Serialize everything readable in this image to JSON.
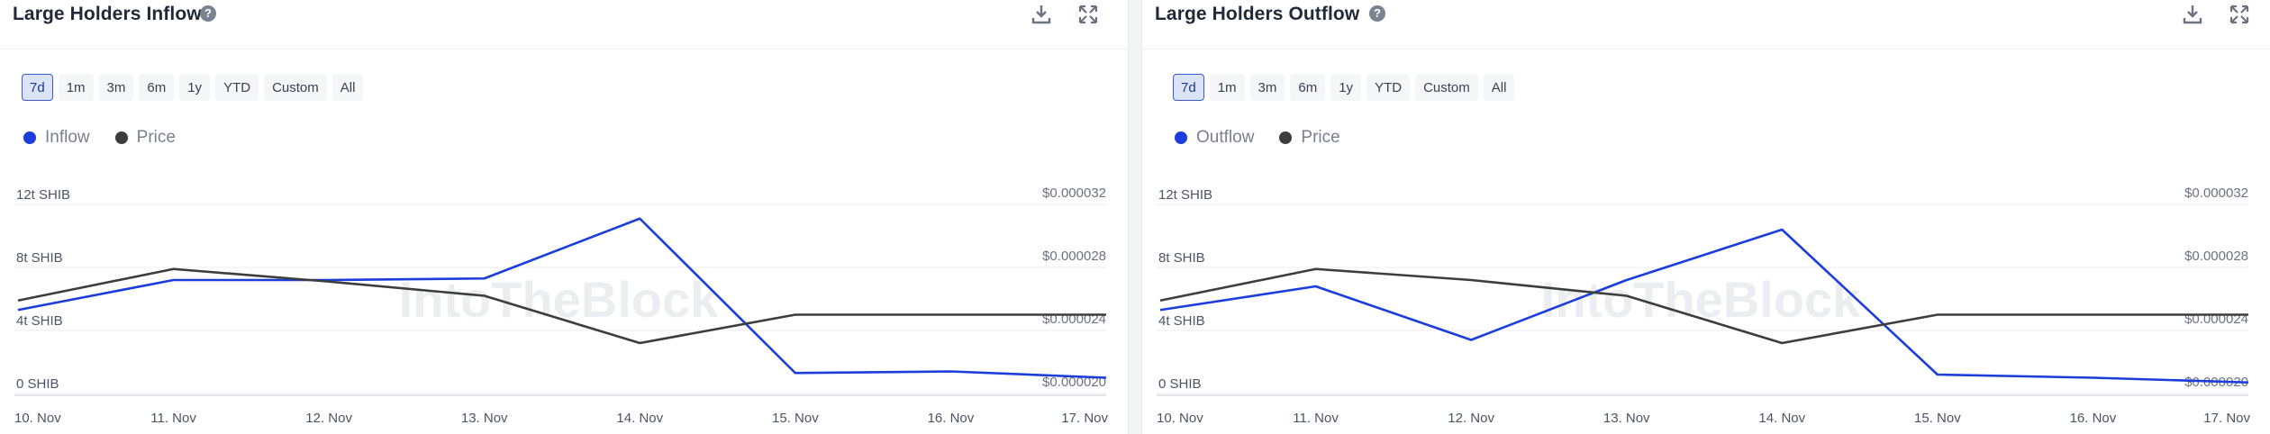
{
  "colors": {
    "primary": "#1a3ddb",
    "price": "#3d3d3d",
    "grid": "#eceef1"
  },
  "watermark": "IntoTheBlock",
  "panels": [
    {
      "title": "Large Holders Inflow",
      "help_icon": "?",
      "ranges": [
        "7d",
        "1m",
        "3m",
        "6m",
        "1y",
        "YTD",
        "Custom",
        "All"
      ],
      "active_range": "7d",
      "legend": [
        "Inflow",
        "Price"
      ],
      "chart_data": {
        "type": "line",
        "categories": [
          "10. Nov",
          "11. Nov",
          "12. Nov",
          "13. Nov",
          "14. Nov",
          "15. Nov",
          "16. Nov",
          "17. Nov"
        ],
        "y_left_ticks": [
          "12t SHIB",
          "8t SHIB",
          "4t SHIB",
          "0 SHIB"
        ],
        "y_right_ticks": [
          "$0.000032",
          "$0.000028",
          "$0.000024",
          "$0.000020"
        ],
        "y_left_range": [
          0,
          12
        ],
        "y_right_range": [
          2e-05,
          3.2e-05
        ],
        "series": [
          {
            "name": "Inflow",
            "axis": "left",
            "values": [
              5.3,
              7.2,
              7.2,
              7.3,
              11.1,
              1.3,
              1.4,
              1.0
            ]
          },
          {
            "name": "Price",
            "axis": "right",
            "values": [
              2.59e-05,
              2.79e-05,
              2.71e-05,
              2.62e-05,
              2.32e-05,
              2.5e-05,
              2.5e-05,
              2.5e-05
            ]
          }
        ]
      }
    },
    {
      "title": "Large Holders Outflow",
      "help_icon": "?",
      "ranges": [
        "7d",
        "1m",
        "3m",
        "6m",
        "1y",
        "YTD",
        "Custom",
        "All"
      ],
      "active_range": "7d",
      "legend": [
        "Outflow",
        "Price"
      ],
      "chart_data": {
        "type": "line",
        "categories": [
          "10. Nov",
          "11. Nov",
          "12. Nov",
          "13. Nov",
          "14. Nov",
          "15. Nov",
          "16. Nov",
          "17. Nov"
        ],
        "y_left_ticks": [
          "12t SHIB",
          "8t SHIB",
          "4t SHIB",
          "0 SHIB"
        ],
        "y_right_ticks": [
          "$0.000032",
          "$0.000028",
          "$0.000024",
          "$0.000020"
        ],
        "y_left_range": [
          0,
          12
        ],
        "y_right_range": [
          2e-05,
          3.2e-05
        ],
        "series": [
          {
            "name": "Outflow",
            "axis": "left",
            "values": [
              5.3,
              6.8,
              3.4,
              7.2,
              10.4,
              1.2,
              1.0,
              0.7
            ]
          },
          {
            "name": "Price",
            "axis": "right",
            "values": [
              2.59e-05,
              2.79e-05,
              2.72e-05,
              2.62e-05,
              2.32e-05,
              2.5e-05,
              2.5e-05,
              2.5e-05
            ]
          }
        ]
      }
    }
  ]
}
